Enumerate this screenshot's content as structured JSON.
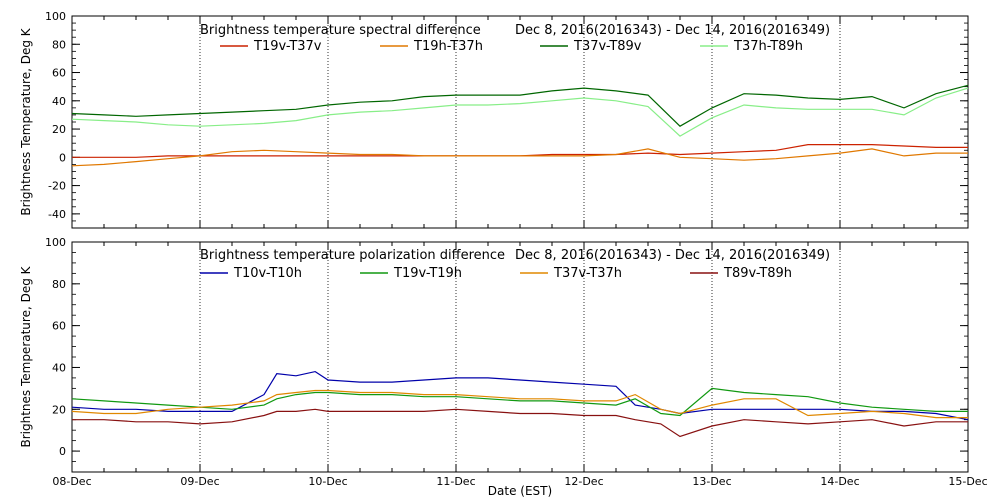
{
  "chart_data": [
    {
      "type": "line",
      "title": "Brightness temperature spectral difference",
      "date_range": "Dec  8, 2016(2016343) - Dec 14, 2016(2016349)",
      "ylabel": "Brightness Temperature, Deg K",
      "xlabel": "",
      "ylim": [
        -50,
        100
      ],
      "yticks": [
        -40,
        -20,
        0,
        20,
        40,
        60,
        80,
        100
      ],
      "grid": true,
      "legend": "top",
      "x": [
        8.0,
        8.25,
        8.5,
        8.75,
        9.0,
        9.25,
        9.5,
        9.75,
        10.0,
        10.25,
        10.5,
        10.75,
        11.0,
        11.25,
        11.5,
        11.75,
        12.0,
        12.25,
        12.5,
        12.75,
        13.0,
        13.25,
        13.5,
        13.75,
        14.0,
        14.25,
        14.5,
        14.75,
        15.0
      ],
      "series": [
        {
          "name": "T19v-T37v",
          "color": "#cc2200",
          "values": [
            0,
            0,
            0,
            1,
            1,
            1,
            1,
            1,
            1,
            1,
            1,
            1,
            1,
            1,
            1,
            2,
            2,
            2,
            3,
            2,
            3,
            4,
            5,
            9,
            9,
            9,
            8,
            7,
            7
          ]
        },
        {
          "name": "T19h-T37h",
          "color": "#e07800",
          "values": [
            -6,
            -5,
            -3,
            -1,
            1,
            4,
            5,
            4,
            3,
            2,
            2,
            1,
            1,
            1,
            1,
            1,
            1,
            2,
            6,
            0,
            -1,
            -2,
            -1,
            1,
            3,
            6,
            1,
            3,
            3
          ]
        },
        {
          "name": "T37v-T89v",
          "color": "#006600",
          "values": [
            31,
            30,
            29,
            30,
            31,
            32,
            33,
            34,
            37,
            39,
            40,
            43,
            44,
            44,
            44,
            47,
            49,
            47,
            44,
            22,
            35,
            45,
            44,
            42,
            41,
            43,
            35,
            45,
            51
          ]
        },
        {
          "name": "T37h-T89h",
          "color": "#88ee88",
          "values": [
            27,
            26,
            25,
            23,
            22,
            23,
            24,
            26,
            30,
            32,
            33,
            35,
            37,
            37,
            38,
            40,
            42,
            40,
            36,
            15,
            28,
            37,
            35,
            34,
            34,
            34,
            30,
            42,
            49
          ]
        }
      ]
    },
    {
      "type": "line",
      "title": "Brightness temperature polarization difference",
      "date_range": "Dec  8, 2016(2016343) - Dec 14, 2016(2016349)",
      "ylabel": "Brightnes Temperature, Deg K",
      "xlabel": "Date (EST)",
      "ylim": [
        -10,
        100
      ],
      "yticks": [
        0,
        20,
        40,
        60,
        80,
        100
      ],
      "grid": true,
      "legend": "top",
      "xticks": [
        {
          "value": 8,
          "label": "08-Dec"
        },
        {
          "value": 9,
          "label": "09-Dec"
        },
        {
          "value": 10,
          "label": "10-Dec"
        },
        {
          "value": 11,
          "label": "11-Dec"
        },
        {
          "value": 12,
          "label": "12-Dec"
        },
        {
          "value": 13,
          "label": "13-Dec"
        },
        {
          "value": 14,
          "label": "14-Dec"
        },
        {
          "value": 15,
          "label": "15-Dec"
        }
      ],
      "x": [
        8.0,
        8.25,
        8.5,
        8.75,
        9.0,
        9.25,
        9.5,
        9.6,
        9.75,
        9.9,
        10.0,
        10.25,
        10.5,
        10.75,
        11.0,
        11.25,
        11.5,
        11.75,
        12.0,
        12.25,
        12.4,
        12.6,
        12.75,
        13.0,
        13.25,
        13.5,
        13.75,
        14.0,
        14.25,
        14.5,
        14.75,
        15.0
      ],
      "series": [
        {
          "name": "T10v-T10h",
          "color": "#0000aa",
          "values": [
            21,
            20,
            20,
            19,
            19,
            19,
            27,
            37,
            36,
            38,
            34,
            33,
            33,
            34,
            35,
            35,
            34,
            33,
            32,
            31,
            22,
            20,
            18,
            20,
            20,
            20,
            20,
            20,
            19,
            19,
            18,
            15
          ]
        },
        {
          "name": "T19v-T19h",
          "color": "#119911",
          "values": [
            25,
            24,
            23,
            22,
            21,
            20,
            22,
            25,
            27,
            28,
            28,
            27,
            27,
            26,
            26,
            25,
            24,
            24,
            23,
            22,
            25,
            18,
            17,
            30,
            28,
            27,
            26,
            23,
            21,
            20,
            19,
            19
          ]
        },
        {
          "name": "T37v-T37h",
          "color": "#e08800",
          "values": [
            19,
            18,
            18,
            20,
            21,
            22,
            24,
            27,
            28,
            29,
            29,
            28,
            28,
            27,
            27,
            26,
            25,
            25,
            24,
            24,
            27,
            20,
            18,
            22,
            25,
            25,
            17,
            18,
            19,
            18,
            16,
            16
          ]
        },
        {
          "name": "T89v-T89h",
          "color": "#881111",
          "values": [
            15,
            15,
            14,
            14,
            13,
            14,
            17,
            19,
            19,
            20,
            19,
            19,
            19,
            19,
            20,
            19,
            18,
            18,
            17,
            17,
            15,
            13,
            7,
            12,
            15,
            14,
            13,
            14,
            15,
            12,
            14,
            14
          ]
        }
      ]
    }
  ]
}
